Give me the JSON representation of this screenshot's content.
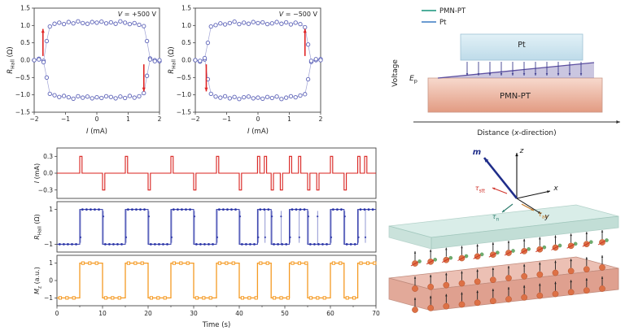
{
  "colors": {
    "loop_marker": "#5d63b8",
    "loop_line": "#9094cf",
    "arrow_red": "#e02424",
    "pulse_red": "#d8201d",
    "hall_blue": "#2b35a8",
    "mz_orange": "#f59a23",
    "axis": "#444444",
    "wedge_purple": "#5b4ea0",
    "field_arrow": "#3d3d8f",
    "pt_box_edge": "#9fc2d4",
    "pmnpt_box_edge": "#c9998a",
    "slab_teal_top": "#cde8e1",
    "slab_teal_front": "#b4d6cc",
    "slab_teal_edge": "#9cc4b9",
    "slab_pink_top": "#ecc0b4",
    "slab_pink_front": "#dfa08f",
    "slab_pink_edge": "#c08b7c",
    "m_arrow": "#1f2d8a",
    "atom_orange": "#dd7146",
    "atom_green": "#6fae6f",
    "spin_arrow": "#222222",
    "tau_stt": "#d0342c",
    "tau_n": "#2e7d6e",
    "tau_an": "#c77c2a"
  },
  "chart_data": [
    {
      "id": "loop-positive",
      "type": "scatter",
      "title": "*V* = +500 V",
      "xlabel": "*I* (mA)",
      "ylabel": "*R*_{Hall} (Ω)",
      "xlim": [
        -2,
        2
      ],
      "ylim": [
        -1.5,
        1.5
      ],
      "xticks": [
        {
          "v": -2,
          "label": "−2"
        },
        {
          "v": -1,
          "label": "−1"
        },
        {
          "v": 0,
          "label": "0"
        },
        {
          "v": 1,
          "label": "1"
        },
        {
          "v": 2,
          "label": "2"
        }
      ],
      "yticks": [
        {
          "v": -1.5,
          "label": "−1.5"
        },
        {
          "v": -1,
          "label": "−1.0"
        },
        {
          "v": -0.5,
          "label": "−0.5"
        },
        {
          "v": 0,
          "label": "0.0"
        },
        {
          "v": 0.5,
          "label": "0.5"
        },
        {
          "v": 1,
          "label": "1.0"
        },
        {
          "v": 1.5,
          "label": "1.5"
        }
      ],
      "series": [
        {
          "name": "sweep-up",
          "x": [
            -2.0,
            -1.85,
            -1.7,
            -1.6,
            -1.5,
            -1.35,
            -1.2,
            -1.05,
            -0.9,
            -0.75,
            -0.6,
            -0.45,
            -0.3,
            -0.15,
            0.0,
            0.15,
            0.3,
            0.45,
            0.6,
            0.75,
            0.9,
            1.05,
            1.2,
            1.35,
            1.5,
            1.6,
            1.7,
            1.85,
            2.0
          ],
          "y": [
            0.0,
            0.04,
            -0.02,
            0.55,
            0.97,
            1.05,
            1.08,
            1.04,
            1.1,
            1.06,
            1.12,
            1.07,
            1.05,
            1.1,
            1.08,
            1.11,
            1.06,
            1.09,
            1.05,
            1.12,
            1.08,
            1.04,
            1.07,
            1.02,
            0.98,
            0.55,
            0.05,
            0.0,
            -0.03
          ]
        },
        {
          "name": "sweep-down",
          "x": [
            2.0,
            1.85,
            1.7,
            1.6,
            1.5,
            1.35,
            1.2,
            1.05,
            0.9,
            0.75,
            0.6,
            0.45,
            0.3,
            0.15,
            0.0,
            -0.15,
            -0.3,
            -0.45,
            -0.6,
            -0.75,
            -0.9,
            -1.05,
            -1.2,
            -1.35,
            -1.5,
            -1.6,
            -1.7,
            -1.85,
            -2.0
          ],
          "y": [
            0.0,
            -0.03,
            0.02,
            -0.45,
            -0.95,
            -1.04,
            -1.08,
            -1.03,
            -1.09,
            -1.05,
            -1.1,
            -1.06,
            -1.04,
            -1.09,
            -1.07,
            -1.1,
            -1.05,
            -1.08,
            -1.04,
            -1.11,
            -1.07,
            -1.03,
            -1.06,
            -1.01,
            -0.97,
            -0.5,
            -0.06,
            0.02,
            0.0
          ]
        }
      ],
      "arrows": [
        {
          "x": -1.72,
          "y_from": 0.12,
          "y_to": 0.9
        },
        {
          "x": 1.5,
          "y_from": -0.12,
          "y_to": -0.9
        }
      ]
    },
    {
      "id": "loop-negative",
      "type": "scatter",
      "title": "*V* = −500 V",
      "xlabel": "*I* (mA)",
      "ylabel": "*R*_{Hall} (Ω)",
      "xlim": [
        -2,
        2
      ],
      "ylim": [
        -1.5,
        1.5
      ],
      "xticks": [
        {
          "v": -2,
          "label": "−2"
        },
        {
          "v": -1,
          "label": "−1"
        },
        {
          "v": 0,
          "label": "0"
        },
        {
          "v": 1,
          "label": "1"
        },
        {
          "v": 2,
          "label": "2"
        }
      ],
      "yticks": [
        {
          "v": -1.5,
          "label": "−1.5"
        },
        {
          "v": -1,
          "label": "−1.0"
        },
        {
          "v": -0.5,
          "label": "−0.5"
        },
        {
          "v": 0,
          "label": "0.0"
        },
        {
          "v": 0.5,
          "label": "0.5"
        },
        {
          "v": 1,
          "label": "1.0"
        },
        {
          "v": 1.5,
          "label": "1.5"
        }
      ],
      "series": [
        {
          "name": "sweep-up",
          "x": [
            -2.0,
            -1.85,
            -1.7,
            -1.6,
            -1.5,
            -1.35,
            -1.2,
            -1.05,
            -0.9,
            -0.75,
            -0.6,
            -0.45,
            -0.3,
            -0.15,
            0.0,
            0.15,
            0.3,
            0.45,
            0.6,
            0.75,
            0.9,
            1.05,
            1.2,
            1.35,
            1.5,
            1.6,
            1.7,
            1.85,
            2.0
          ],
          "y": [
            0.0,
            -0.04,
            0.02,
            -0.55,
            -0.97,
            -1.05,
            -1.08,
            -1.04,
            -1.1,
            -1.06,
            -1.12,
            -1.07,
            -1.05,
            -1.1,
            -1.08,
            -1.11,
            -1.06,
            -1.09,
            -1.05,
            -1.12,
            -1.08,
            -1.04,
            -1.07,
            -1.02,
            -0.98,
            -0.55,
            -0.05,
            0.0,
            0.03
          ]
        },
        {
          "name": "sweep-down",
          "x": [
            2.0,
            1.85,
            1.7,
            1.6,
            1.5,
            1.35,
            1.2,
            1.05,
            0.9,
            0.75,
            0.6,
            0.45,
            0.3,
            0.15,
            0.0,
            -0.15,
            -0.3,
            -0.45,
            -0.6,
            -0.75,
            -0.9,
            -1.05,
            -1.2,
            -1.35,
            -1.5,
            -1.6,
            -1.7,
            -1.85,
            -2.0
          ],
          "y": [
            0.0,
            0.03,
            -0.02,
            0.45,
            0.95,
            1.04,
            1.08,
            1.03,
            1.09,
            1.05,
            1.1,
            1.06,
            1.04,
            1.09,
            1.07,
            1.1,
            1.05,
            1.08,
            1.04,
            1.11,
            1.07,
            1.03,
            1.06,
            1.01,
            0.97,
            0.5,
            0.06,
            -0.02,
            0.0
          ]
        }
      ],
      "arrows": [
        {
          "x": -1.65,
          "y_from": -0.12,
          "y_to": -0.9
        },
        {
          "x": 1.5,
          "y_from": 0.12,
          "y_to": 0.9
        }
      ]
    },
    {
      "id": "time-traces",
      "type": "line",
      "xlabel": "Time (s)",
      "xlim": [
        0,
        70
      ],
      "xticks": [
        {
          "v": 0,
          "label": "0"
        },
        {
          "v": 10,
          "label": "10"
        },
        {
          "v": 20,
          "label": "20"
        },
        {
          "v": 30,
          "label": "30"
        },
        {
          "v": 40,
          "label": "40"
        },
        {
          "v": 50,
          "label": "50"
        },
        {
          "v": 60,
          "label": "60"
        },
        {
          "v": 70,
          "label": "70"
        }
      ],
      "xminor": [
        5,
        15,
        25,
        35,
        45,
        55,
        65
      ],
      "panels": [
        {
          "name": "current-pulses",
          "ylabel": "*I* (mA)",
          "ylim": [
            -0.45,
            0.45
          ],
          "yticks": [
            {
              "v": 0.3,
              "label": "0.3"
            },
            {
              "v": 0,
              "label": "0.0"
            },
            {
              "v": -0.3,
              "label": "−0.3"
            }
          ],
          "style": "pulse",
          "color_key": "pulse_red",
          "pulse_width": 0.5,
          "pulses": [
            {
              "t": 5,
              "a": 0.3
            },
            {
              "t": 10,
              "a": -0.3
            },
            {
              "t": 15,
              "a": 0.3
            },
            {
              "t": 20,
              "a": -0.3
            },
            {
              "t": 25,
              "a": 0.3
            },
            {
              "t": 30,
              "a": -0.3
            },
            {
              "t": 35,
              "a": 0.3
            },
            {
              "t": 40,
              "a": -0.3
            },
            {
              "t": 44,
              "a": 0.3
            },
            {
              "t": 45.5,
              "a": 0.3
            },
            {
              "t": 47,
              "a": -0.3
            },
            {
              "t": 49,
              "a": -0.3
            },
            {
              "t": 51,
              "a": 0.3
            },
            {
              "t": 53,
              "a": 0.3
            },
            {
              "t": 55,
              "a": -0.3
            },
            {
              "t": 57,
              "a": -0.3
            },
            {
              "t": 60,
              "a": 0.3
            },
            {
              "t": 63,
              "a": -0.3
            },
            {
              "t": 66,
              "a": 0.3
            },
            {
              "t": 67.5,
              "a": 0.3
            }
          ]
        },
        {
          "name": "hall-resistance",
          "ylabel": "*R*_{Hall} (Ω)",
          "ylim": [
            -1.45,
            1.45
          ],
          "yticks": [
            {
              "v": 1,
              "label": "1"
            },
            {
              "v": -1,
              "label": "−1"
            }
          ],
          "style": "step-dots",
          "color_key": "hall_blue",
          "t": [
            0,
            5,
            10,
            15,
            20,
            25,
            30,
            35,
            40,
            44,
            47,
            51,
            55,
            60,
            63,
            66,
            70
          ],
          "v": [
            -1,
            1,
            -1,
            1,
            -1,
            1,
            -1,
            1,
            -1,
            1,
            -1,
            1,
            -1,
            1,
            -1,
            1
          ]
        },
        {
          "name": "out-of-plane-magnetization",
          "ylabel": "*M*_{z} (a.u.)",
          "ylim": [
            -1.45,
            1.45
          ],
          "yticks": [
            {
              "v": 1,
              "label": "1"
            },
            {
              "v": 0,
              "label": "0"
            },
            {
              "v": -1,
              "label": "−1"
            }
          ],
          "style": "step-squares",
          "color_key": "mz_orange",
          "t": [
            0,
            5,
            10,
            15,
            20,
            25,
            30,
            35,
            40,
            44,
            47,
            51,
            55,
            60,
            63,
            66,
            70
          ],
          "v": [
            -1,
            1,
            -1,
            1,
            -1,
            1,
            -1,
            1,
            -1,
            1,
            -1,
            1,
            -1,
            1,
            -1,
            1
          ]
        }
      ]
    }
  ],
  "device": {
    "legend": [
      {
        "label": "PMN-PT",
        "color": "#4fae9b"
      },
      {
        "label": "Pt",
        "color": "#6b9bd1"
      }
    ],
    "voltage_axis_label": "Voltage",
    "distance_axis_label": "Distance (*x*-direction)",
    "pt_label": "Pt",
    "pmnpt_label": "PMN-PT",
    "ep_label": "*E*_{p}",
    "n_field_arrows": 11
  },
  "spin_schematic": {
    "z_label": "*z*",
    "x_label": "*x*",
    "y_label": "*y*",
    "m_label": "*m*",
    "tau_stt_label": "*τ*_{stt}",
    "tau_n_label": "*τ*_{n}",
    "tau_an_label": "*τ*_{an}",
    "atoms_per_row": 13,
    "rows": 3
  }
}
